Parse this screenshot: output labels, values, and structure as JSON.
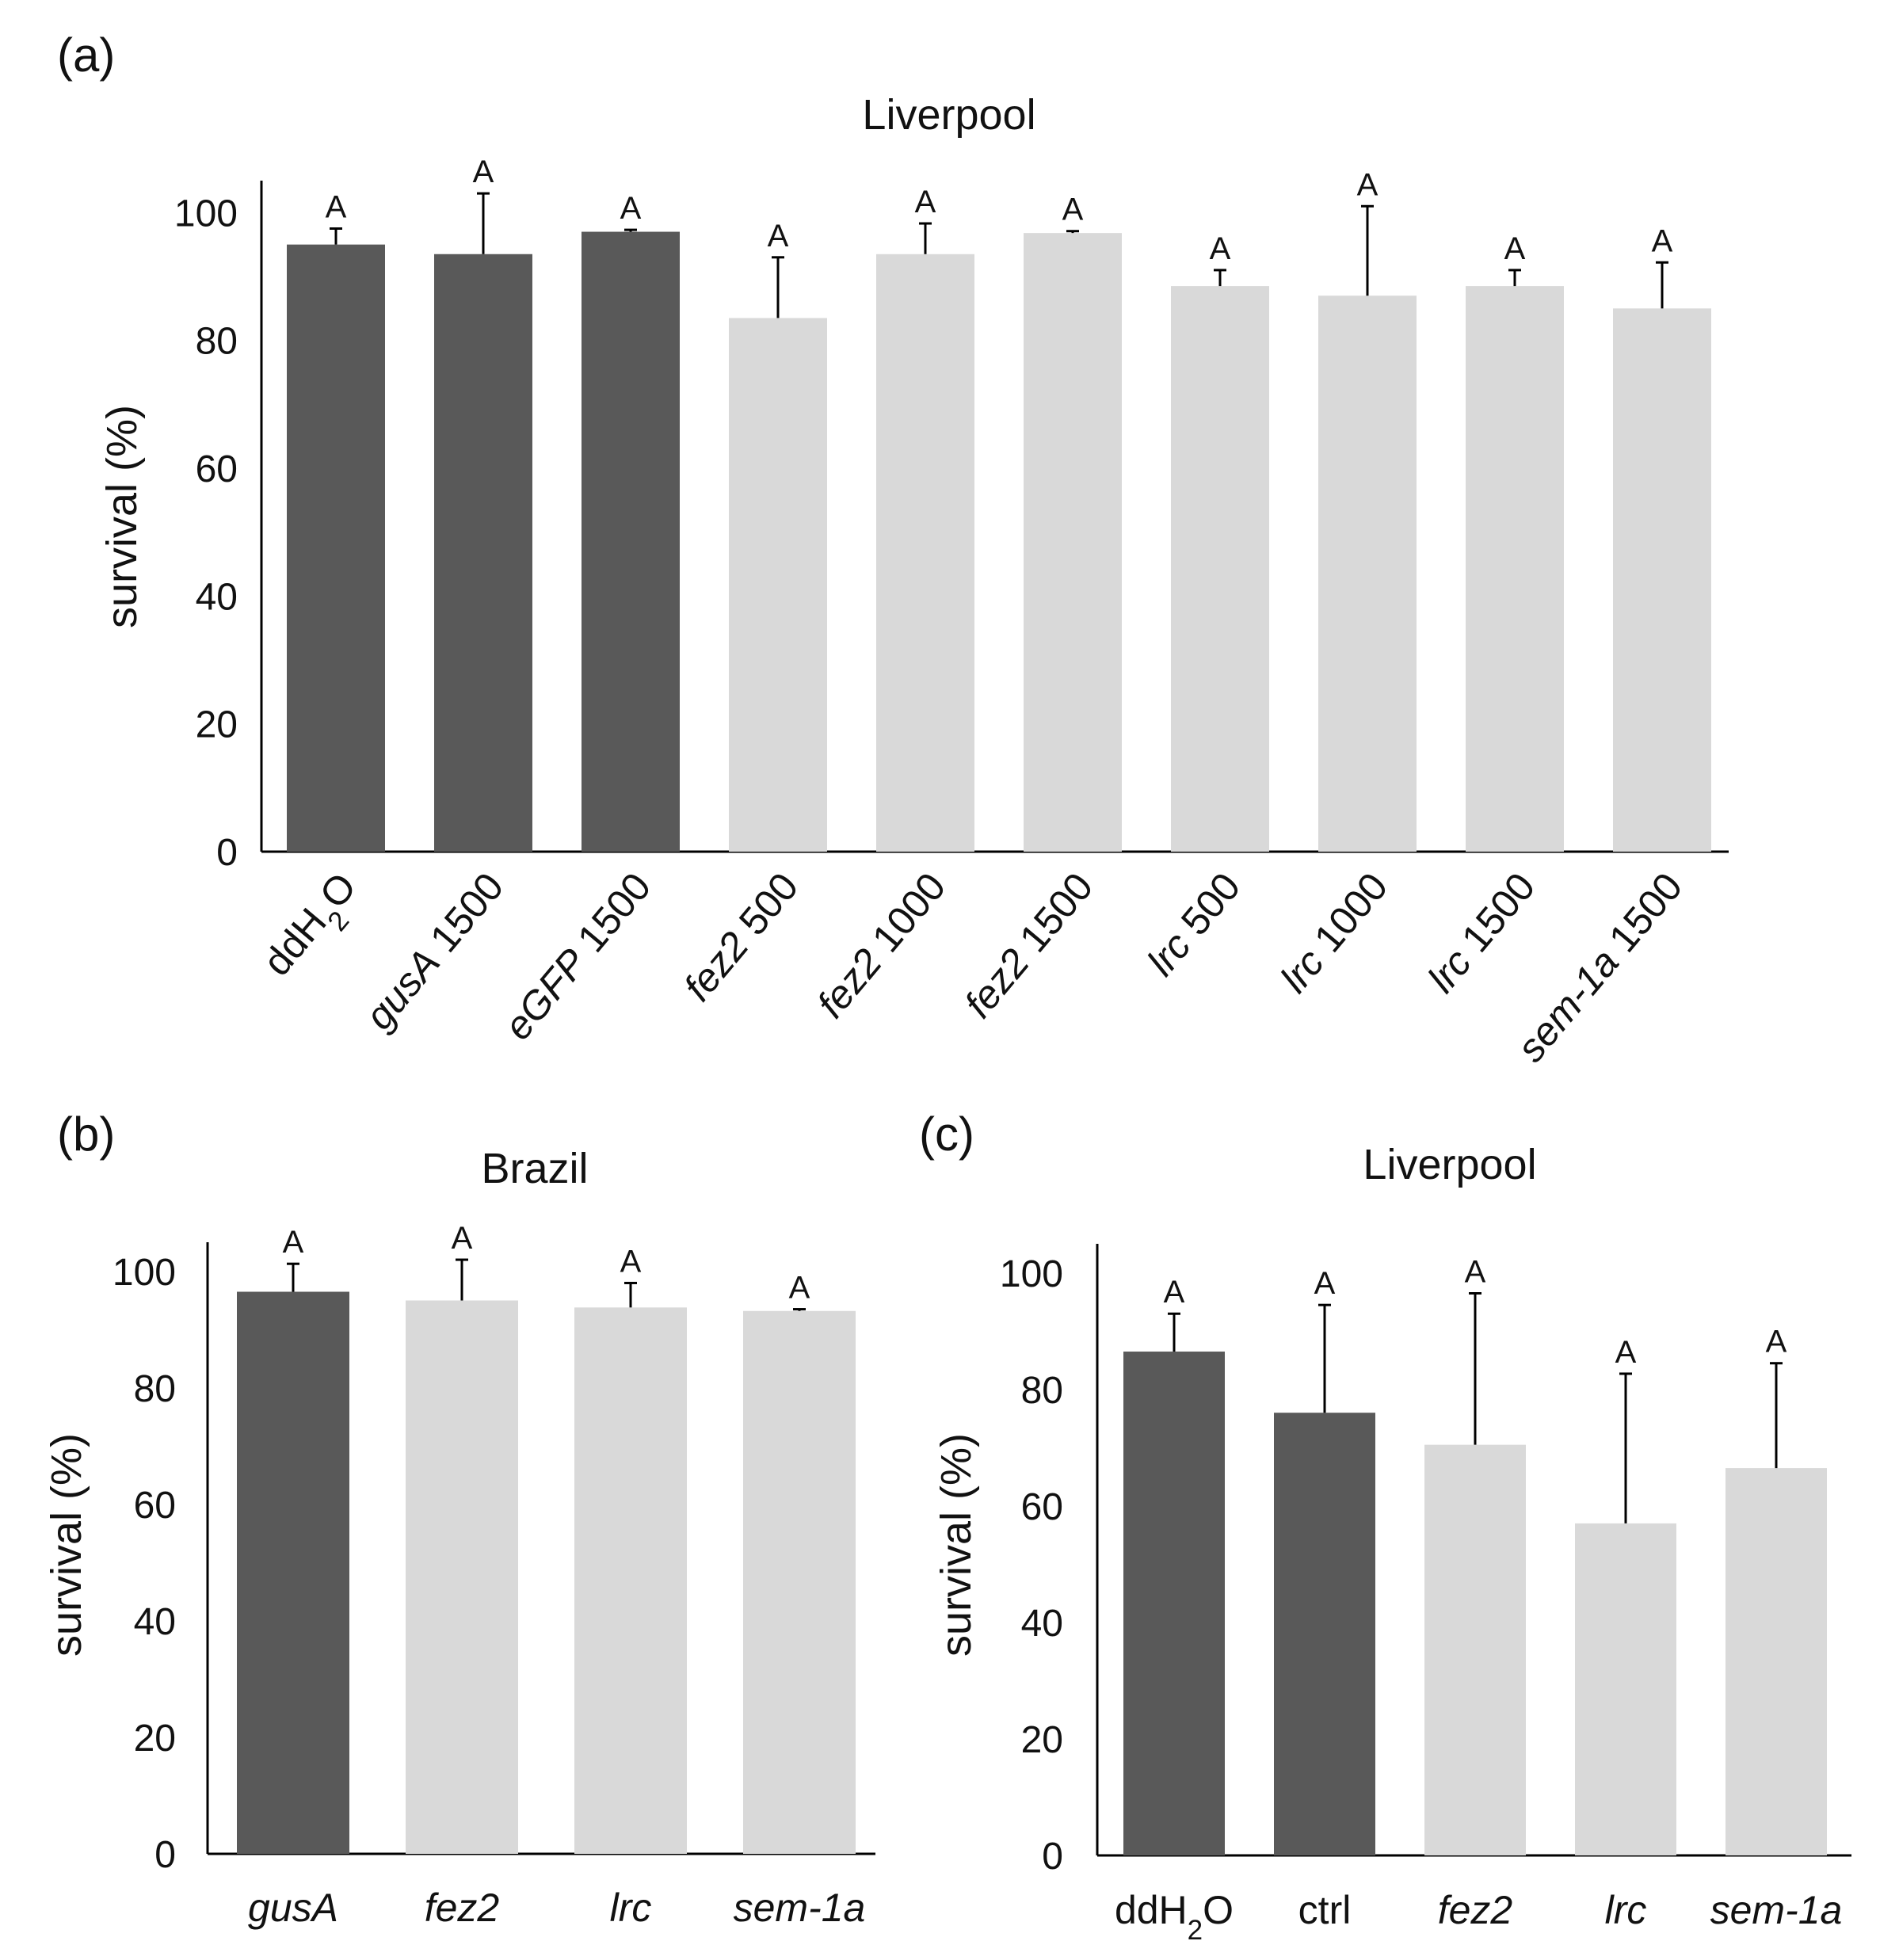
{
  "colors": {
    "control": "#595959",
    "treatment": "#d9d9d9",
    "axis": "#000000",
    "error_bar": "#000000"
  },
  "chart_data": [
    {
      "panel": "(a)",
      "type": "bar",
      "title": "Liverpool",
      "xlabel": "",
      "ylabel": "survival (%)",
      "ylim": [
        0,
        105
      ],
      "yticks": [
        0,
        20,
        40,
        60,
        80,
        100
      ],
      "grid": false,
      "x_label_style": "rotated",
      "categories": [
        [
          {
            "t": "ddH"
          },
          {
            "t": "2",
            "sub": true
          },
          {
            "t": "O"
          }
        ],
        [
          {
            "t": "gusA",
            "i": true
          },
          {
            "t": " 1500"
          }
        ],
        [
          {
            "t": "eGFP",
            "i": true
          },
          {
            "t": " 1500"
          }
        ],
        [
          {
            "t": "fez2",
            "i": true
          },
          {
            "t": " 500"
          }
        ],
        [
          {
            "t": "fez2",
            "i": true
          },
          {
            "t": " 1000"
          }
        ],
        [
          {
            "t": "fez2",
            "i": true
          },
          {
            "t": " 1500"
          }
        ],
        [
          {
            "t": "lrc",
            "i": true
          },
          {
            "t": " 500"
          }
        ],
        [
          {
            "t": "lrc",
            "i": true
          },
          {
            "t": " 1000"
          }
        ],
        [
          {
            "t": "lrc",
            "i": true
          },
          {
            "t": " 1500"
          }
        ],
        [
          {
            "t": "sem-1a",
            "i": true
          },
          {
            "t": " 1500"
          }
        ]
      ],
      "values": [
        95,
        93.5,
        97,
        83.5,
        93.5,
        96.8,
        88.5,
        87,
        88.5,
        85
      ],
      "errors": [
        2.5,
        9.5,
        0.3,
        9.5,
        4.8,
        0.3,
        2.5,
        14,
        2.5,
        7.2
      ],
      "groups": [
        "control",
        "control",
        "control",
        "treatment",
        "treatment",
        "treatment",
        "treatment",
        "treatment",
        "treatment",
        "treatment"
      ],
      "significance": [
        "A",
        "A",
        "A",
        "A",
        "A",
        "A",
        "A",
        "A",
        "A",
        "A"
      ]
    },
    {
      "panel": "(b)",
      "type": "bar",
      "title": "Brazil",
      "xlabel": "",
      "ylabel": "survival (%)",
      "ylim": [
        0,
        105
      ],
      "yticks": [
        0,
        20,
        40,
        60,
        80,
        100
      ],
      "grid": false,
      "x_label_style": "horizontal",
      "categories": [
        [
          {
            "t": "gusA",
            "i": true
          }
        ],
        [
          {
            "t": "fez2",
            "i": true
          }
        ],
        [
          {
            "t": "lrc",
            "i": true
          }
        ],
        [
          {
            "t": "sem-1a",
            "i": true
          }
        ]
      ],
      "values": [
        96.5,
        95,
        93.8,
        93.2
      ],
      "errors": [
        4.8,
        7,
        4.2,
        0.3
      ],
      "groups": [
        "control",
        "treatment",
        "treatment",
        "treatment"
      ],
      "significance": [
        "A",
        "A",
        "A",
        "A"
      ]
    },
    {
      "panel": "(c)",
      "type": "bar",
      "title": "Liverpool",
      "xlabel": "",
      "ylabel": "survival (%)",
      "ylim": [
        0,
        105
      ],
      "yticks": [
        0,
        20,
        40,
        60,
        80,
        100
      ],
      "grid": false,
      "x_label_style": "horizontal",
      "categories": [
        [
          {
            "t": "ddH"
          },
          {
            "t": "2",
            "sub": true
          },
          {
            "t": "O"
          }
        ],
        [
          {
            "t": "ctrl"
          }
        ],
        [
          {
            "t": "fez2",
            "i": true
          }
        ],
        [
          {
            "t": "lrc",
            "i": true
          }
        ],
        [
          {
            "t": "sem-1a",
            "i": true
          }
        ]
      ],
      "values": [
        86.5,
        76,
        70.5,
        57,
        66.5
      ],
      "errors": [
        6.5,
        18.5,
        26,
        25.7,
        18
      ],
      "groups": [
        "control",
        "control",
        "treatment",
        "treatment",
        "treatment"
      ],
      "significance": [
        "A",
        "A",
        "A",
        "A",
        "A"
      ]
    }
  ]
}
